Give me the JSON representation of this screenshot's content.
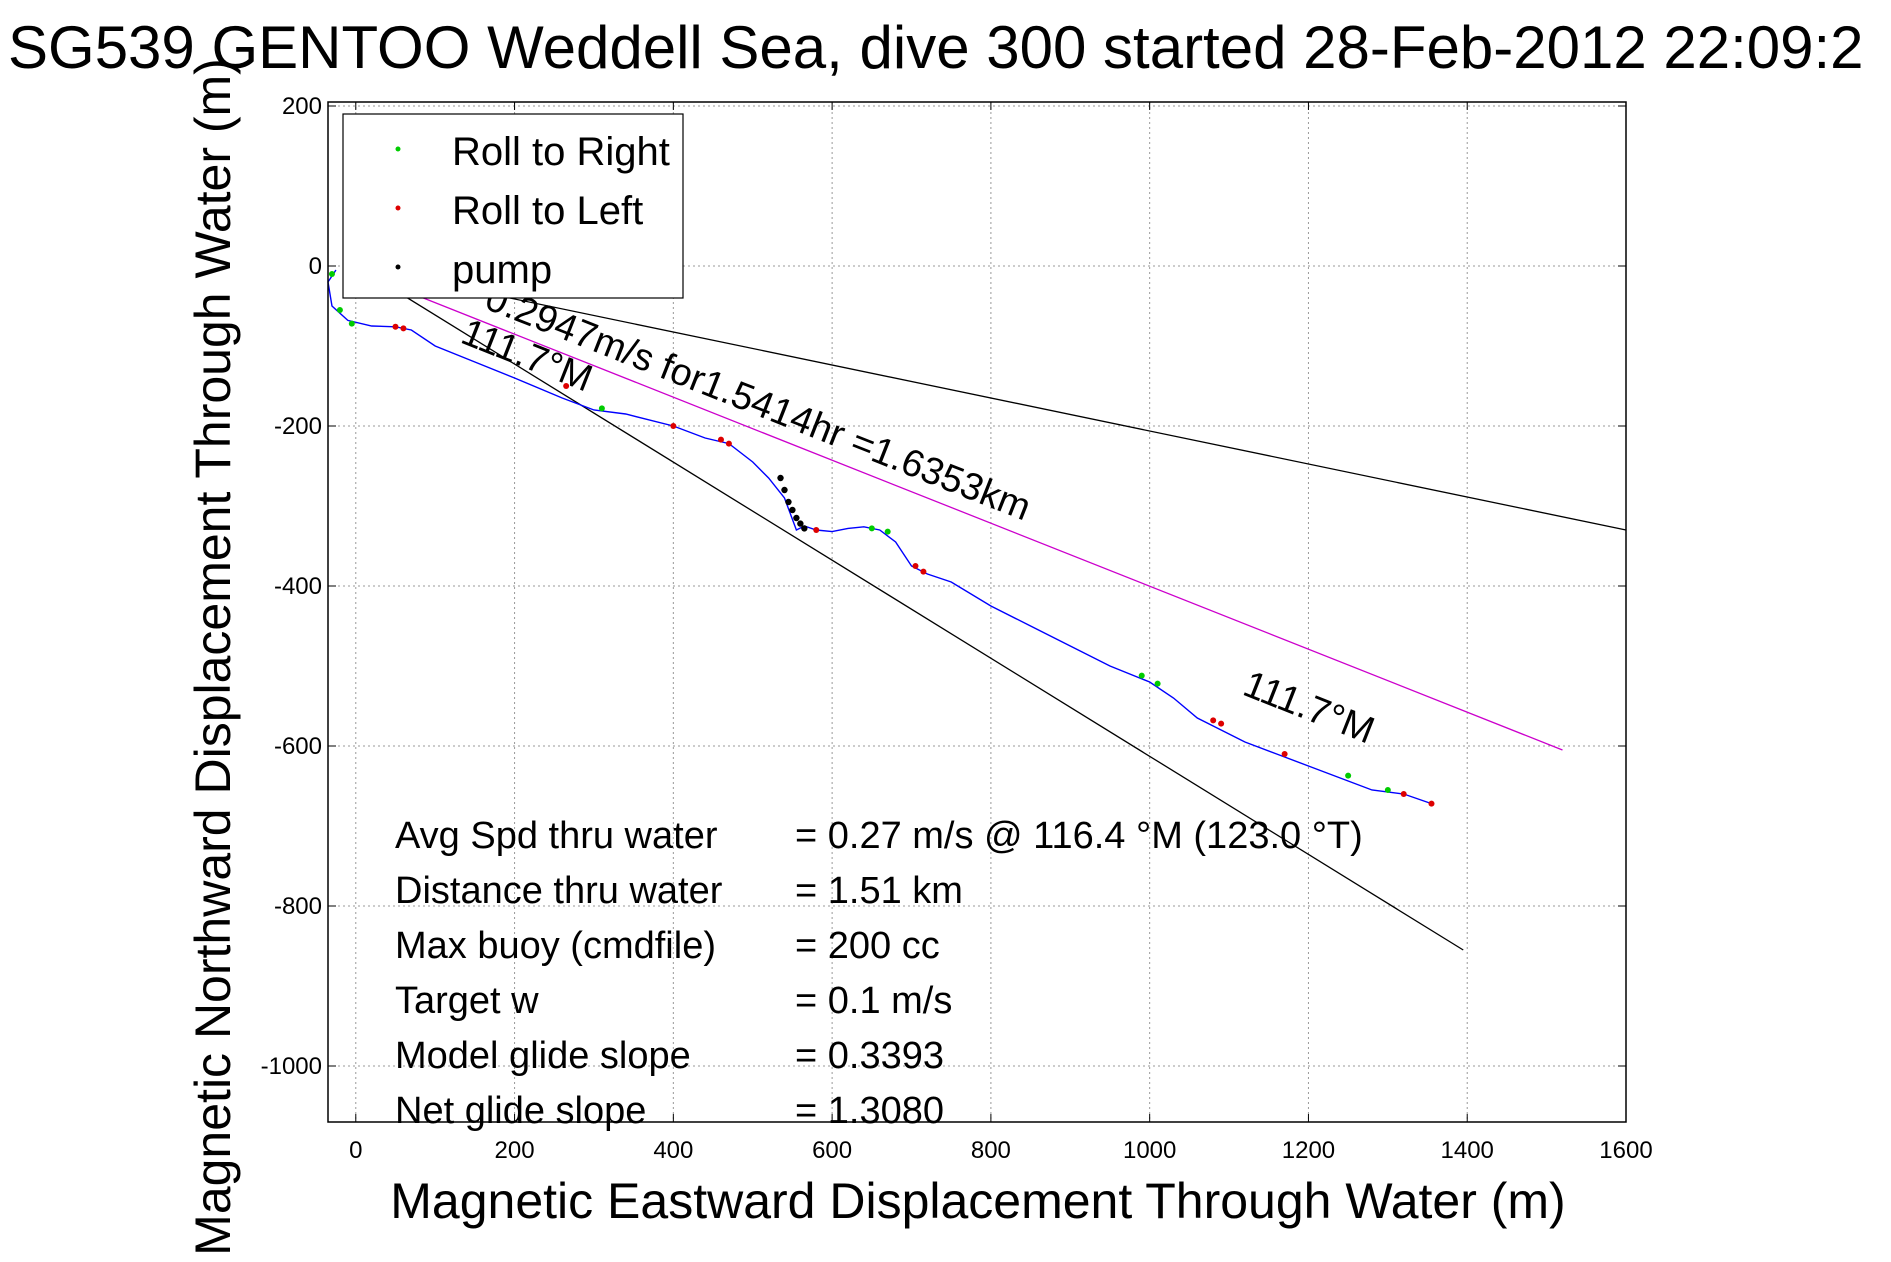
{
  "chart_data": {
    "type": "line",
    "title": "SG539 GENTOO Weddell Sea, dive 300 started 28-Feb-2012 22:09:2",
    "xlabel": "Magnetic Eastward Displacement Through Water (m)",
    "ylabel": "Magnetic Northward Displacement Through Water (m)",
    "xlim": [
      -35,
      1600
    ],
    "ylim": [
      -1070,
      205
    ],
    "xticks": [
      0,
      200,
      400,
      600,
      800,
      1000,
      1200,
      1400,
      1600
    ],
    "yticks": [
      200,
      0,
      -200,
      -400,
      -600,
      -800,
      -1000
    ],
    "grid": true,
    "legend_position": "top-left",
    "legend": [
      {
        "label": "Roll to Right",
        "color": "#00cc00"
      },
      {
        "label": "Roll to Left",
        "color": "#dd0000"
      },
      {
        "label": "pump",
        "color": "#000000"
      }
    ],
    "track": {
      "color": "#0000ff",
      "x": [
        -25,
        -35,
        -30,
        -10,
        20,
        50,
        70,
        100,
        150,
        200,
        260,
        300,
        340,
        400,
        440,
        470,
        500,
        520,
        540,
        555,
        565,
        580,
        600,
        620,
        640,
        660,
        680,
        690,
        700,
        720,
        750,
        800,
        850,
        900,
        950,
        1000,
        1030,
        1060,
        1090,
        1120,
        1160,
        1200,
        1240,
        1280,
        1320,
        1355
      ],
      "y": [
        -5,
        -20,
        -50,
        -68,
        -75,
        -76,
        -80,
        -100,
        -120,
        -140,
        -165,
        -180,
        -185,
        -200,
        -215,
        -222,
        -245,
        -265,
        -290,
        -330,
        -325,
        -330,
        -332,
        -328,
        -326,
        -330,
        -345,
        -360,
        -375,
        -385,
        -395,
        -425,
        -450,
        -475,
        -500,
        -520,
        -540,
        -565,
        -580,
        -595,
        -610,
        -625,
        -640,
        -655,
        -660,
        -672
      ]
    },
    "roll_right_x": [
      -30,
      -20,
      -5,
      310,
      650,
      670,
      990,
      1010,
      1250,
      1300
    ],
    "roll_right_y": [
      -10,
      -55,
      -72,
      -178,
      -328,
      -332,
      -512,
      -522,
      -637,
      -655
    ],
    "roll_left_x": [
      50,
      60,
      265,
      400,
      460,
      470,
      580,
      705,
      715,
      1080,
      1090,
      1170,
      1320,
      1355
    ],
    "roll_left_y": [
      -76,
      -78,
      -150,
      -200,
      -217,
      -222,
      -330,
      -375,
      -382,
      -568,
      -572,
      -610,
      -660,
      -672
    ],
    "pump_x": [
      535,
      540,
      545,
      550,
      555,
      560,
      565
    ],
    "pump_y": [
      -265,
      -280,
      -295,
      -305,
      -315,
      -322,
      -328
    ],
    "ref_lines": [
      {
        "x": [
          0,
          1600
        ],
        "y": [
          0,
          -330
        ],
        "color": "#000000"
      },
      {
        "x": [
          0,
          1395
        ],
        "y": [
          0,
          -855
        ],
        "color": "#000000"
      },
      {
        "x": [
          80,
          1520
        ],
        "y": [
          -38,
          -605
        ],
        "color": "#cc00cc"
      }
    ],
    "annotations": [
      {
        "text": "0.2947m/s for1.5414hr =1.6353km",
        "x": 160,
        "y": -52,
        "angle": 21.5
      },
      {
        "text": "111.7°M",
        "x": 130,
        "y": -95,
        "angle": 21.5
      },
      {
        "text": "111.7°M",
        "x": 1115,
        "y": -535,
        "angle": 21.5
      }
    ],
    "stats": [
      {
        "label": "Avg Spd thru water",
        "value": "=  0.27 m/s @ 116.4 °M (123.0 °T)"
      },
      {
        "label": "Distance thru water",
        "value": "=  1.51 km"
      },
      {
        "label": "Max buoy (cmdfile)",
        "value": "= 200 cc"
      },
      {
        "label": "Target w",
        "value": "= 0.1 m/s"
      },
      {
        "label": "Model glide slope",
        "value": "= 0.3393"
      },
      {
        "label": "Net glide slope",
        "value": "= 1.3080"
      }
    ]
  }
}
